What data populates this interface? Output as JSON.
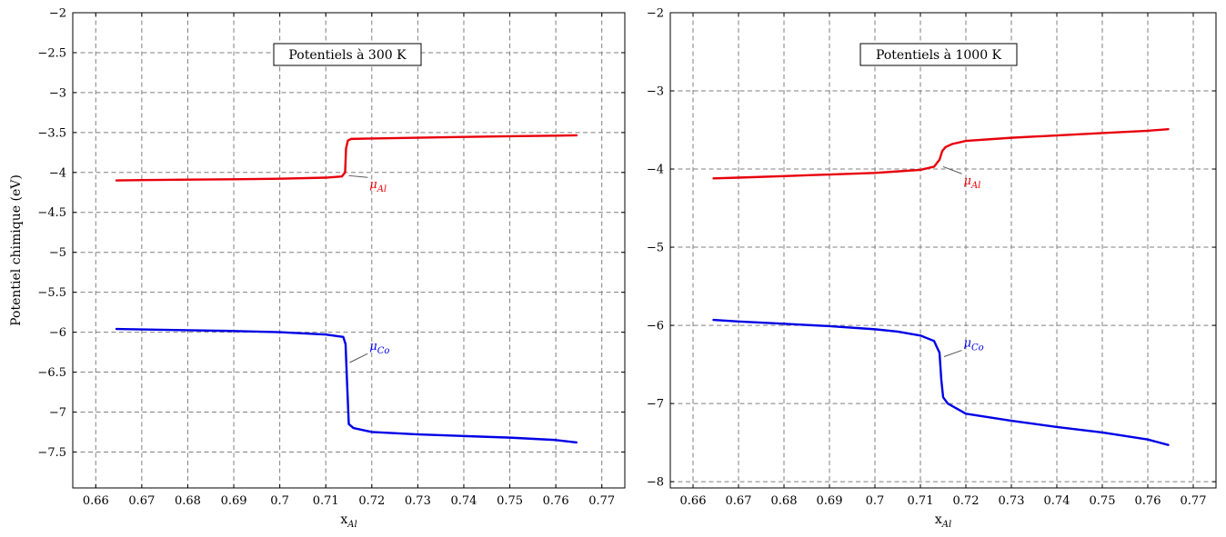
{
  "chart_data": [
    {
      "type": "line",
      "title": "Potentiels à 300 K",
      "xlabel": "x",
      "xlabel_sub": "Al",
      "ylabel": "Potentiel chimique (eV)",
      "xlim": [
        0.655,
        0.775
      ],
      "ylim": [
        -7.95,
        -2
      ],
      "xticks": [
        0.66,
        0.67,
        0.68,
        0.69,
        0.7,
        0.71,
        0.72,
        0.73,
        0.74,
        0.75,
        0.76,
        0.77
      ],
      "xtick_labels": [
        "0.66",
        "0.67",
        "0.68",
        "0.69",
        "0.7",
        "0.71",
        "0.72",
        "0.73",
        "0.74",
        "0.75",
        "0.76",
        "0.77"
      ],
      "yticks": [
        -2,
        -2.5,
        -3,
        -3.5,
        -4,
        -4.5,
        -5,
        -5.5,
        -6,
        -6.5,
        -7,
        -7.5
      ],
      "ytick_labels": [
        "−2",
        "−2.5",
        "−3",
        "−3.5",
        "−4",
        "−4.5",
        "−5",
        "−5.5",
        "−6",
        "−6.5",
        "−7",
        "−7.5"
      ],
      "grid": true,
      "series": [
        {
          "name": "μ",
          "name_sub": "Al",
          "color": "#e8000b",
          "label_at": [
            0.7195,
            -4.13
          ],
          "leader_from": [
            0.7146,
            -4.04
          ],
          "x": [
            0.6645,
            0.67,
            0.68,
            0.69,
            0.7,
            0.71,
            0.7135,
            0.7142,
            0.7144,
            0.7148,
            0.7155,
            0.72,
            0.73,
            0.74,
            0.75,
            0.76,
            0.7645
          ],
          "y": [
            -4.1,
            -4.095,
            -4.09,
            -4.085,
            -4.078,
            -4.065,
            -4.05,
            -4.0,
            -3.7,
            -3.6,
            -3.58,
            -3.575,
            -3.565,
            -3.555,
            -3.547,
            -3.54,
            -3.535
          ]
        },
        {
          "name": "μ",
          "name_sub": "Co",
          "color": "#0000e6",
          "label_at": [
            0.7195,
            -6.2
          ],
          "leader_from": [
            0.7148,
            -6.38
          ],
          "x": [
            0.6645,
            0.67,
            0.68,
            0.69,
            0.7,
            0.71,
            0.7138,
            0.7143,
            0.7146,
            0.715,
            0.716,
            0.72,
            0.73,
            0.74,
            0.75,
            0.76,
            0.7645
          ],
          "y": [
            -5.96,
            -5.965,
            -5.975,
            -5.985,
            -6.0,
            -6.03,
            -6.06,
            -6.15,
            -6.6,
            -7.15,
            -7.2,
            -7.25,
            -7.28,
            -7.3,
            -7.32,
            -7.35,
            -7.38
          ]
        }
      ]
    },
    {
      "type": "line",
      "title": "Potentiels à 1000 K",
      "xlabel": "x",
      "xlabel_sub": "Al",
      "ylabel": "",
      "xlim": [
        0.655,
        0.775
      ],
      "ylim": [
        -8.08,
        -2
      ],
      "xticks": [
        0.66,
        0.67,
        0.68,
        0.69,
        0.7,
        0.71,
        0.72,
        0.73,
        0.74,
        0.75,
        0.76,
        0.77
      ],
      "xtick_labels": [
        "0.66",
        "0.67",
        "0.68",
        "0.69",
        "0.7",
        "0.71",
        "0.72",
        "0.73",
        "0.74",
        "0.75",
        "0.76",
        "0.77"
      ],
      "yticks": [
        -2,
        -3,
        -4,
        -5,
        -6,
        -7,
        -8
      ],
      "ytick_labels": [
        "−2",
        "−3",
        "−4",
        "−5",
        "−6",
        "−7",
        "−8"
      ],
      "grid": true,
      "series": [
        {
          "name": "μ",
          "name_sub": "Al",
          "color": "#e8000b",
          "label_at": [
            0.7195,
            -4.13
          ],
          "leader_from": [
            0.7146,
            -3.97
          ],
          "x": [
            0.6645,
            0.67,
            0.68,
            0.69,
            0.7,
            0.705,
            0.71,
            0.713,
            0.7142,
            0.7148,
            0.7155,
            0.717,
            0.72,
            0.73,
            0.74,
            0.75,
            0.76,
            0.7645
          ],
          "y": [
            -4.12,
            -4.11,
            -4.09,
            -4.07,
            -4.05,
            -4.03,
            -4.01,
            -3.97,
            -3.88,
            -3.77,
            -3.72,
            -3.68,
            -3.64,
            -3.6,
            -3.57,
            -3.54,
            -3.51,
            -3.49
          ]
        },
        {
          "name": "μ",
          "name_sub": "Co",
          "color": "#0000e6",
          "label_at": [
            0.7195,
            -6.25
          ],
          "leader_from": [
            0.7148,
            -6.4
          ],
          "x": [
            0.6645,
            0.67,
            0.68,
            0.69,
            0.7,
            0.705,
            0.71,
            0.713,
            0.7142,
            0.7146,
            0.715,
            0.716,
            0.72,
            0.73,
            0.74,
            0.75,
            0.76,
            0.7645
          ],
          "y": [
            -5.93,
            -5.95,
            -5.98,
            -6.01,
            -6.05,
            -6.08,
            -6.13,
            -6.2,
            -6.35,
            -6.7,
            -6.92,
            -7.0,
            -7.13,
            -7.22,
            -7.3,
            -7.37,
            -7.46,
            -7.53
          ]
        }
      ]
    }
  ]
}
